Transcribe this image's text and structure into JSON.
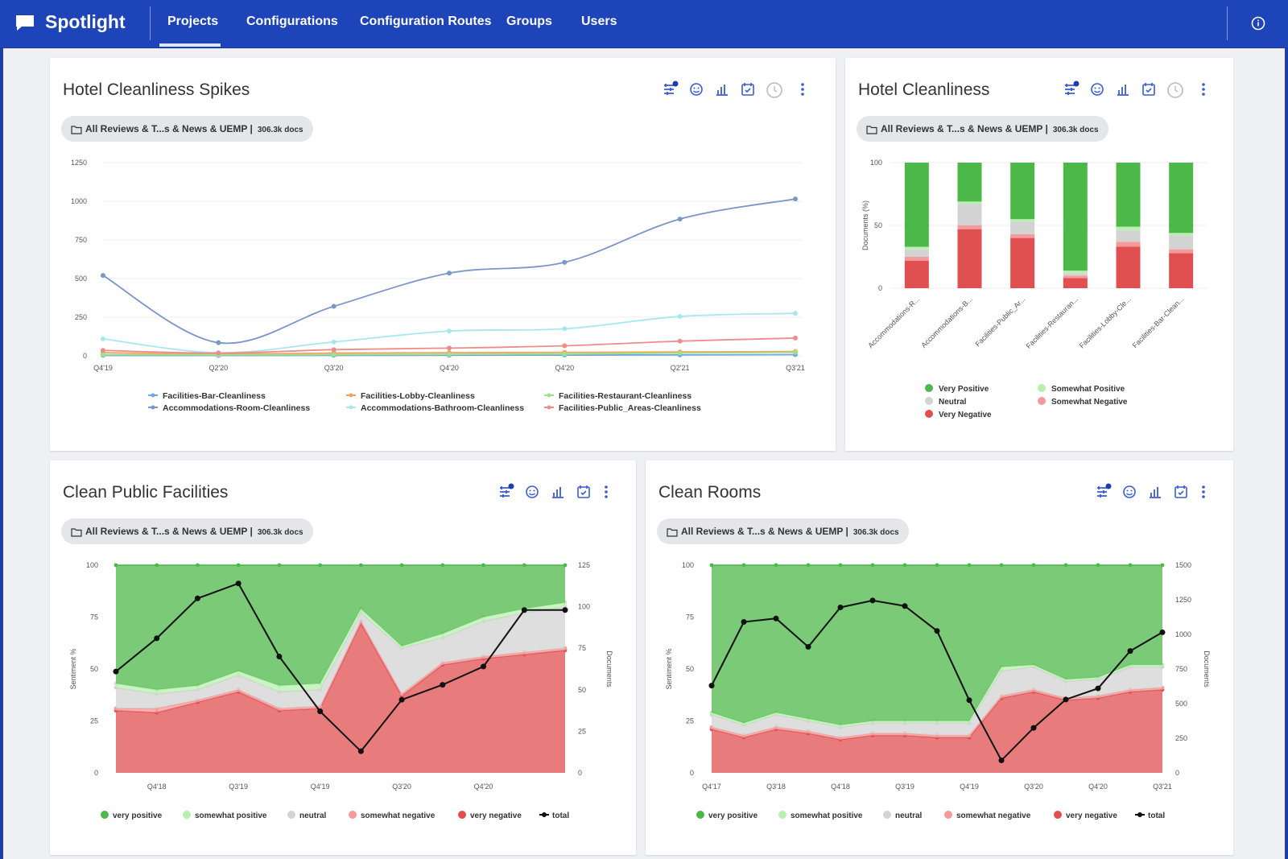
{
  "app": {
    "title": "Spotlight"
  },
  "nav": {
    "items": [
      "Projects",
      "Configurations",
      "Configuration Routes",
      "Groups",
      "Users"
    ],
    "active": "Projects"
  },
  "colors": {
    "brand": "#1d44b8",
    "very_positive": "#4db84a",
    "somewhat_positive": "#b8f0b0",
    "neutral": "#d3d3d3",
    "somewhat_negative": "#f49a9a",
    "very_negative": "#e05050",
    "bar": "#6fa8dc",
    "lobby": "#f5a25d",
    "restaurant": "#9be28f",
    "room": "#7b96c8",
    "bathroom": "#a7e8ee",
    "public": "#f08b8b"
  },
  "cards": {
    "spikes": {
      "title": "Hotel Cleanliness Spikes",
      "source": "All Reviews & T...s & News & UEMP |",
      "docs": "306.3k docs"
    },
    "cleanliness": {
      "title": "Hotel Cleanliness",
      "source": "All Reviews & T...s & News & UEMP |",
      "docs": "306.3k docs"
    },
    "public": {
      "title": "Clean Public Facilities",
      "source": "All Reviews & T...s & News & UEMP |",
      "docs": "306.3k docs"
    },
    "rooms": {
      "title": "Clean Rooms",
      "source": "All Reviews & T...s & News & UEMP |",
      "docs": "306.3k docs"
    }
  },
  "sentiment_legend": [
    "very positive",
    "somewhat positive",
    "neutral",
    "somewhat negative",
    "very negative",
    "total"
  ],
  "chart_data": [
    {
      "id": "spikes",
      "type": "line",
      "title": "Hotel Cleanliness Spikes",
      "x": [
        "Q4'19",
        "Q2'20",
        "Q3'20",
        "Q4'20",
        "Q4'20",
        "Q2'21",
        "Q3'21"
      ],
      "ylim": [
        0,
        1250
      ],
      "yticks": [
        0,
        250,
        500,
        750,
        1000,
        1250
      ],
      "series": [
        {
          "name": "Facilities-Bar-Cleanliness",
          "color": "#6fa8dc",
          "values": [
            3,
            2,
            3,
            4,
            5,
            6,
            8
          ]
        },
        {
          "name": "Facilities-Lobby-Cleanliness",
          "color": "#f5a25d",
          "values": [
            20,
            12,
            18,
            20,
            22,
            25,
            28
          ]
        },
        {
          "name": "Facilities-Restaurant-Cleanliness",
          "color": "#9be28f",
          "values": [
            8,
            6,
            8,
            10,
            12,
            18,
            22
          ]
        },
        {
          "name": "Accommodations-Room-Cleanliness",
          "color": "#7b96c8",
          "values": [
            520,
            85,
            320,
            535,
            605,
            885,
            1015
          ]
        },
        {
          "name": "Accommodations-Bathroom-Cleanliness",
          "color": "#a7e8ee",
          "values": [
            110,
            20,
            90,
            160,
            175,
            255,
            275
          ]
        },
        {
          "name": "Facilities-Public_Areas-Cleanliness",
          "color": "#f08b8b",
          "values": [
            35,
            18,
            40,
            50,
            65,
            95,
            115
          ]
        }
      ]
    },
    {
      "id": "cleanliness",
      "type": "bar",
      "title": "Hotel Cleanliness",
      "stacked": true,
      "categories": [
        "Accommodations-R...",
        "Accommodations-B...",
        "Facilities-Public_Ar...",
        "Facilities-Restauran...",
        "Facilities-Lobby-Cle...",
        "Facilities-Bar-Clean..."
      ],
      "ylabel": "Documents (%)",
      "ylim": [
        0,
        100
      ],
      "yticks": [
        0,
        50,
        100
      ],
      "series": [
        {
          "name": "Very Negative",
          "color": "#e05050",
          "values": [
            22,
            47,
            40,
            8,
            33,
            28
          ]
        },
        {
          "name": "Somewhat Negative",
          "color": "#f49a9a",
          "values": [
            3,
            3,
            3,
            2,
            4,
            3
          ]
        },
        {
          "name": "Neutral",
          "color": "#d3d3d3",
          "values": [
            6,
            17,
            10,
            2,
            9,
            11
          ]
        },
        {
          "name": "Somewhat Positive",
          "color": "#b8f0b0",
          "values": [
            2,
            2,
            2,
            2,
            3,
            2
          ]
        },
        {
          "name": "Very Positive",
          "color": "#4db84a",
          "values": [
            67,
            31,
            45,
            86,
            51,
            56
          ]
        }
      ],
      "legend": [
        "Very Positive",
        "Somewhat Positive",
        "Neutral",
        "Somewhat Negative",
        "Very Negative"
      ]
    },
    {
      "id": "public",
      "type": "area",
      "title": "Clean Public Facilities",
      "x": [
        "",
        "Q4'18",
        "",
        "Q3'19",
        "",
        "Q4'19",
        "",
        "Q3'20",
        "",
        "Q4'20",
        "",
        ""
      ],
      "ylabel": "Sentiment %",
      "ylim": [
        0,
        100
      ],
      "yticks": [
        0,
        25,
        50,
        75,
        100
      ],
      "y2label": "Documents",
      "y2lim": [
        0,
        125
      ],
      "y2ticks": [
        0,
        25,
        50,
        75,
        100,
        125
      ],
      "series": [
        {
          "name": "very negative",
          "color": "#e05050",
          "values": [
            30,
            29,
            34,
            39,
            30,
            31,
            72,
            37,
            52,
            55,
            57,
            59
          ]
        },
        {
          "name": "somewhat negative",
          "color": "#f49a9a",
          "values": [
            1,
            2,
            1,
            1,
            1,
            1,
            1,
            1,
            1,
            1,
            1,
            1
          ]
        },
        {
          "name": "neutral",
          "color": "#d3d3d3",
          "values": [
            10,
            7,
            5,
            7,
            8,
            8,
            4,
            22,
            12,
            17,
            19,
            20
          ]
        },
        {
          "name": "somewhat positive",
          "color": "#b8f0b0",
          "values": [
            2,
            2,
            2,
            2,
            3,
            3,
            2,
            1,
            2,
            2,
            2,
            2
          ]
        },
        {
          "name": "very positive",
          "color": "#4db84a",
          "values": [
            57,
            60,
            58,
            51,
            58,
            57,
            21,
            39,
            33,
            25,
            21,
            18
          ]
        }
      ],
      "total": {
        "name": "total",
        "color": "#111111",
        "values": [
          61,
          81,
          105,
          114,
          70,
          37,
          13,
          44,
          53,
          64,
          98,
          98
        ]
      }
    },
    {
      "id": "rooms",
      "type": "area",
      "title": "Clean Rooms",
      "x": [
        "Q4'17",
        "",
        "Q3'18",
        "",
        "Q4'18",
        "",
        "Q3'19",
        "",
        "Q4'19",
        "",
        "Q3'20",
        "",
        "Q4'20",
        "",
        "Q3'21"
      ],
      "ylabel": "Sentiment %",
      "ylim": [
        0,
        100
      ],
      "yticks": [
        0,
        25,
        50,
        75,
        100
      ],
      "y2label": "Documents",
      "y2lim": [
        0,
        1500
      ],
      "y2ticks": [
        0,
        250,
        500,
        750,
        1000,
        1250,
        1500
      ],
      "series": [
        {
          "name": "very negative",
          "color": "#e05050",
          "values": [
            21,
            17,
            21,
            19,
            16,
            18,
            18,
            17,
            17,
            36,
            39,
            35,
            36,
            39,
            40
          ]
        },
        {
          "name": "somewhat negative",
          "color": "#f49a9a",
          "values": [
            1,
            1,
            1,
            1,
            1,
            1,
            1,
            1,
            1,
            1,
            1,
            1,
            1,
            1,
            1
          ]
        },
        {
          "name": "neutral",
          "color": "#d3d3d3",
          "values": [
            6,
            5,
            6,
            5,
            5,
            5,
            5,
            6,
            6,
            12,
            11,
            8,
            8,
            11,
            10
          ]
        },
        {
          "name": "somewhat positive",
          "color": "#b8f0b0",
          "values": [
            1,
            1,
            1,
            1,
            1,
            1,
            1,
            1,
            1,
            2,
            1,
            1,
            1,
            1,
            1
          ]
        },
        {
          "name": "very positive",
          "color": "#4db84a",
          "values": [
            71,
            76,
            71,
            74,
            77,
            75,
            75,
            75,
            75,
            49,
            48,
            55,
            54,
            48,
            48
          ]
        }
      ],
      "total": {
        "name": "total",
        "color": "#111111",
        "values": [
          630,
          1090,
          1115,
          910,
          1195,
          1245,
          1205,
          1025,
          525,
          90,
          325,
          530,
          610,
          880,
          1015
        ]
      }
    }
  ]
}
